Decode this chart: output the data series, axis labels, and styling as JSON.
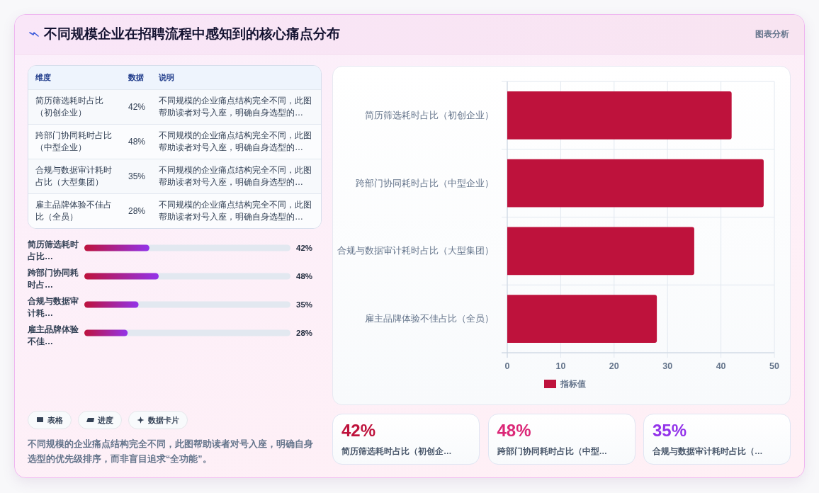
{
  "chart_data": [
    {
      "type": "other",
      "title": "不同规模企业在招聘流程中感知到的核心痛点分布",
      "annotations": [
        "图表分析"
      ]
    },
    {
      "type": "other",
      "categories": [
        "简历筛选耗时占比（初创企业）",
        "跨部门协同耗时占比（中型企业）",
        "合规与数据审计耗时占比（大型集团）",
        "雇主品牌体验不佳占比（全员）"
      ],
      "value_labels": [
        "42%",
        "48%",
        "35%",
        "28%"
      ],
      "annotations": [
        "维度",
        "数据",
        "说明",
        "不同规模的企业痛点结构完全不同，此图帮助读者对号入座，明确自身选型的…",
        "不同规模的企业痛点结构完全不同，此图帮助读者对号入座，明确自身选型的…",
        "不同规模的企业痛点结构完全不同，此图帮助读者对号入座，明确自身选型的…",
        "不同规模的企业痛点结构完全不同，此图帮助读者对号入座，明确自身选型的…"
      ]
    },
    {
      "type": "bar",
      "orientation": "horizontal",
      "categories": [
        "简历筛选耗时占比（初创企业）",
        "跨部门协同耗时占比（中型企业）",
        "合规与数据审计耗时占比（大型集团）",
        "雇主品牌体验不佳占比（全员）"
      ],
      "series": [
        {
          "name": "指标值",
          "color": "#be123c",
          "values": [
            42,
            48,
            35,
            28
          ]
        }
      ],
      "xlim": [
        0,
        50
      ],
      "xticks": [
        0,
        10,
        20,
        30,
        40,
        50
      ],
      "grid": true,
      "legend": "bottom"
    },
    {
      "type": "bar",
      "orientation": "horizontal",
      "categories": [
        "简历筛选耗时占比…",
        "跨部门协同耗时占…",
        "合规与数据审计耗…",
        "雇主品牌体验不佳…"
      ],
      "values": [
        42,
        48,
        35,
        28
      ],
      "value_labels": [
        "42%",
        "48%",
        "35%",
        "28%"
      ],
      "color": "#be123c",
      "xlim": [
        0,
        133
      ],
      "tick_labels": "y",
      "annotations": [
        "表格",
        "进度",
        "数据卡片",
        "不同规模的企业痛点结构完全不同，此图帮助读者对号入座，明确自身选型的优先级排序，而非盲目追求“全功能”。"
      ]
    },
    {
      "type": "other",
      "categories": [
        "简历筛选耗时占比（初创企…",
        "跨部门协同耗时占比（中型…",
        "合规与数据审计耗时占比（…"
      ],
      "value_labels": [
        "42%",
        "48%",
        "35%"
      ],
      "colors": [
        "#be123c",
        "#db2777",
        "#9333ea"
      ]
    }
  ]
}
